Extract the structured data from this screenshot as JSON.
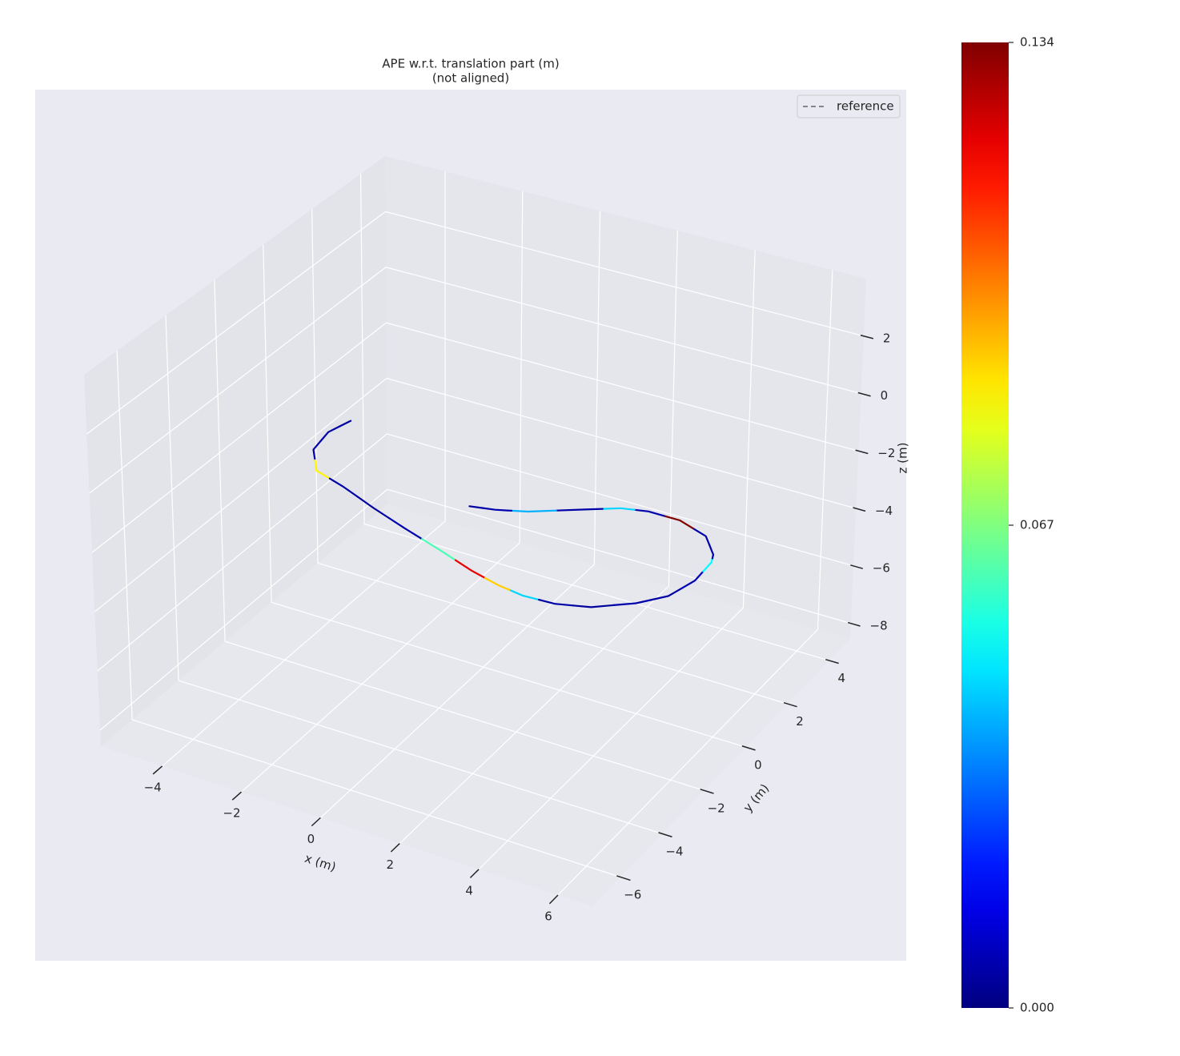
{
  "chart_data": {
    "type": "line3d",
    "title": "APE w.r.t. translation part (m)",
    "subtitle": "(not aligned)",
    "xlabel": "x (m)",
    "ylabel": "y (m)",
    "zlabel": "z (m)",
    "xlim": [
      -5.55,
      6.87
    ],
    "ylim": [
      -7.35,
      5.0
    ],
    "zlim": [
      -8.54,
      4.0
    ],
    "xticks": [
      {
        "value": -4,
        "label": "−4"
      },
      {
        "value": -2,
        "label": "−2"
      },
      0,
      2,
      4,
      6
    ],
    "yticks": [
      {
        "value": -6,
        "label": "−6"
      },
      {
        "value": -4,
        "label": "−4"
      },
      {
        "value": -2,
        "label": "−2"
      },
      0,
      2,
      4
    ],
    "zticks": [
      {
        "value": -8,
        "label": "−8"
      },
      {
        "value": -6,
        "label": "−6"
      },
      {
        "value": -4,
        "label": "−4"
      },
      {
        "value": -2,
        "label": "−2"
      },
      0,
      2
    ],
    "grid": true,
    "legend_position": "upper right",
    "series": [
      {
        "name": "reference",
        "color": "#666666",
        "linestyle": "dashed",
        "x": [
          -3.85,
          -4.01,
          -3.88,
          -3.33,
          -2.48,
          -1.42,
          -0.39,
          0.75,
          1.79,
          2.62,
          3.29,
          4.07,
          4.83,
          5.61,
          6.09,
          6.29,
          6.24,
          6.12,
          5.59,
          4.75,
          3.94,
          3.33,
          2.65,
          1.6,
          0.93,
          0.36
        ],
        "y": [
          0.74,
          0.05,
          -0.8,
          -1.58,
          -1.89,
          -2.37,
          -2.79,
          -3.22,
          -3.64,
          -3.89,
          -4.0,
          -3.95,
          -3.67,
          -3.03,
          -2.41,
          -1.55,
          -0.69,
          -0.39,
          0.22,
          0.53,
          0.53,
          0.35,
          -0.09,
          -0.79,
          -1.08,
          -1.23
        ],
        "z": [
          -2,
          -2,
          -2,
          -2,
          -2,
          -2,
          -2,
          -2,
          -2,
          -2,
          -2,
          -2,
          -2,
          -2,
          -2,
          -2,
          -2,
          -2,
          -2,
          -2,
          -2,
          -2,
          -2,
          -2,
          -2,
          -2
        ]
      }
    ],
    "trajectory_error": {
      "colormap": "jet",
      "clim": [
        0,
        0.134
      ],
      "ticks": [
        {
          "value": 0,
          "label": "0.000"
        },
        {
          "value": 0.067,
          "label": "0.067"
        },
        {
          "value": 0.134,
          "label": "0.134"
        }
      ],
      "values": [
        0.004,
        0.005,
        0.006,
        0.085,
        0.005,
        0.004,
        0.006,
        0.06,
        0.12,
        0.09,
        0.045,
        0.005,
        0.004,
        0.006,
        0.005,
        0.007,
        0.05,
        0.006,
        0.005,
        0.134,
        0.006,
        0.045,
        0.005,
        0.04,
        0.006,
        0.004
      ]
    }
  }
}
